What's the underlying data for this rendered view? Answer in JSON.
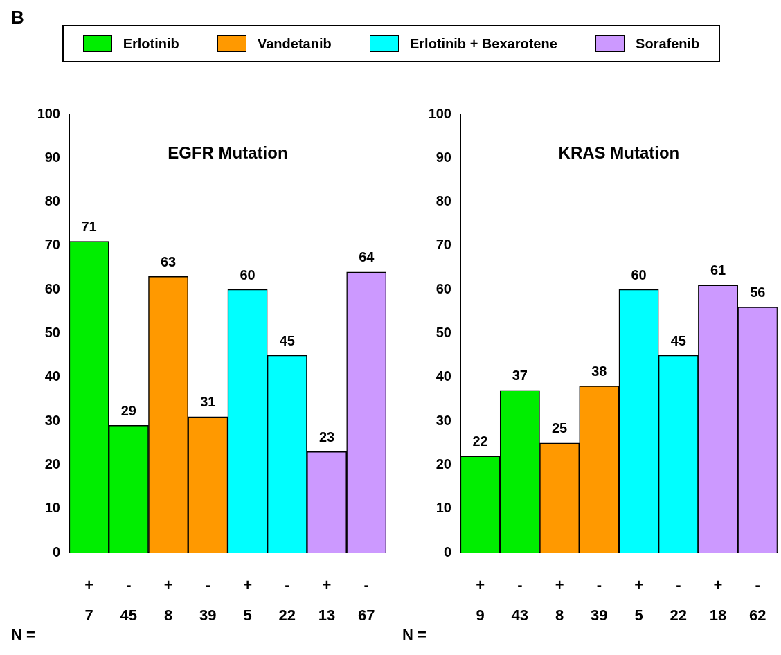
{
  "chart_data": [
    {
      "type": "bar",
      "title": "EGFR Mutation",
      "xlabel": "N =",
      "annotations": [
        "B"
      ],
      "categories": [
        "+\n7",
        "-\n45",
        "+\n8",
        "-\n39",
        "+\n5",
        "-\n22",
        "+\n13",
        "-\n67"
      ],
      "stacked": true,
      "ylim": [
        0,
        100
      ],
      "yticks": [
        0,
        10,
        20,
        30,
        40,
        50,
        60,
        70,
        80,
        90,
        100
      ],
      "grid": false,
      "legend": "top",
      "data_labels": true,
      "series": [
        {
          "name": "Erlotinib",
          "color": "#00ee00",
          "values": [
            71,
            29,
            null,
            null,
            null,
            null,
            null,
            null
          ]
        },
        {
          "name": "Vandetanib",
          "color": "#ff9900",
          "values": [
            null,
            null,
            63,
            31,
            null,
            null,
            null,
            null
          ]
        },
        {
          "name": "Erlotinib + Bexarotene",
          "color": "#00ffff",
          "values": [
            null,
            null,
            null,
            null,
            60,
            45,
            null,
            null
          ]
        },
        {
          "name": "Sorafenib",
          "color": "#cc99ff",
          "values": [
            null,
            null,
            null,
            null,
            null,
            null,
            23,
            64
          ]
        }
      ]
    },
    {
      "type": "bar",
      "title": "KRAS Mutation",
      "xlabel": "N =",
      "categories": [
        "+\n9",
        "-\n43",
        "+\n8",
        "-\n39",
        "+\n5",
        "-\n22",
        "+\n18",
        "-\n62"
      ],
      "stacked": true,
      "ylim": [
        0,
        100
      ],
      "yticks": [
        0,
        10,
        20,
        30,
        40,
        50,
        60,
        70,
        80,
        90,
        100
      ],
      "grid": false,
      "data_labels": true,
      "series": [
        {
          "color": "#00ee00",
          "values": [
            22,
            37,
            null,
            null,
            null,
            null,
            null,
            null
          ]
        },
        {
          "color": "#ff9900",
          "values": [
            null,
            null,
            25,
            38,
            null,
            null,
            null,
            null
          ]
        },
        {
          "color": "#00ffff",
          "values": [
            null,
            null,
            null,
            null,
            60,
            45,
            null,
            null
          ]
        },
        {
          "color": "#cc99ff",
          "values": [
            null,
            null,
            null,
            null,
            null,
            null,
            61,
            56
          ]
        }
      ]
    }
  ]
}
